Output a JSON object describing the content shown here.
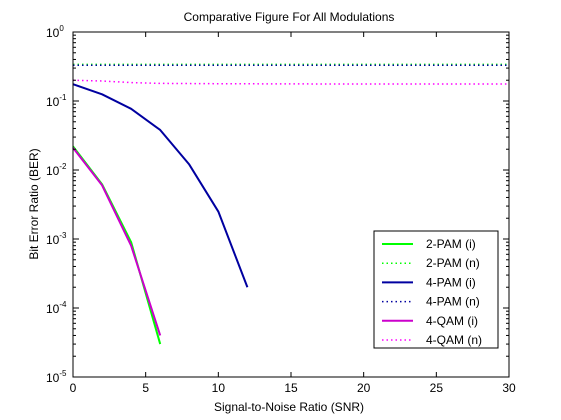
{
  "chart_data": {
    "type": "line",
    "title": "Comparative Figure For All Modulations",
    "xlabel": "Signal-to-Noise Ratio (SNR)",
    "ylabel": "Bit Error Ratio (BER)",
    "xlim": [
      0,
      30
    ],
    "ylim": [
      1e-05,
      1
    ],
    "yscale": "log",
    "grid": false,
    "legend_position": "bottom-right",
    "x_ticks": [
      {
        "value": 0,
        "label": "0"
      },
      {
        "value": 5,
        "label": "5"
      },
      {
        "value": 10,
        "label": "10"
      },
      {
        "value": 15,
        "label": "15"
      },
      {
        "value": 20,
        "label": "20"
      },
      {
        "value": 25,
        "label": "25"
      },
      {
        "value": 30,
        "label": "30"
      }
    ],
    "y_ticks": [
      {
        "value": 1,
        "base": "10",
        "exponent": "0"
      },
      {
        "value": 0.1,
        "base": "10",
        "exponent": "-1"
      },
      {
        "value": 0.01,
        "base": "10",
        "exponent": "-2"
      },
      {
        "value": 0.001,
        "base": "10",
        "exponent": "-3"
      },
      {
        "value": 0.0001,
        "base": "10",
        "exponent": "-4"
      },
      {
        "value": 1e-05,
        "base": "10",
        "exponent": "-5"
      }
    ],
    "series": [
      {
        "name": "2-PAM (i)",
        "color": "#00ff00",
        "style": "solid",
        "x": [
          0,
          2,
          4,
          6
        ],
        "y": [
          0.022,
          0.0062,
          0.0009,
          3e-05
        ]
      },
      {
        "name": "2-PAM (n)",
        "color": "#00ff00",
        "style": "dotted",
        "x": [
          0,
          30
        ],
        "y": [
          0.34,
          0.34
        ]
      },
      {
        "name": "4-PAM (i)",
        "color": "#0000a0",
        "style": "solid",
        "x": [
          0,
          2,
          4,
          6,
          8,
          10,
          12
        ],
        "y": [
          0.175,
          0.125,
          0.077,
          0.038,
          0.012,
          0.0025,
          0.0002
        ]
      },
      {
        "name": "4-PAM (n)",
        "color": "#0000a0",
        "style": "dotted",
        "x": [
          0,
          30
        ],
        "y": [
          0.33,
          0.33
        ]
      },
      {
        "name": "4-QAM (i)",
        "color": "#cc00cc",
        "style": "solid",
        "x": [
          0,
          2,
          4,
          6
        ],
        "y": [
          0.021,
          0.006,
          0.0008,
          4e-05
        ]
      },
      {
        "name": "4-QAM (n)",
        "color": "#ff00ff",
        "style": "dotted",
        "x": [
          0,
          2,
          4,
          6,
          10,
          15,
          20,
          25,
          30
        ],
        "y": [
          0.2,
          0.195,
          0.185,
          0.18,
          0.178,
          0.177,
          0.176,
          0.176,
          0.176
        ]
      }
    ]
  }
}
